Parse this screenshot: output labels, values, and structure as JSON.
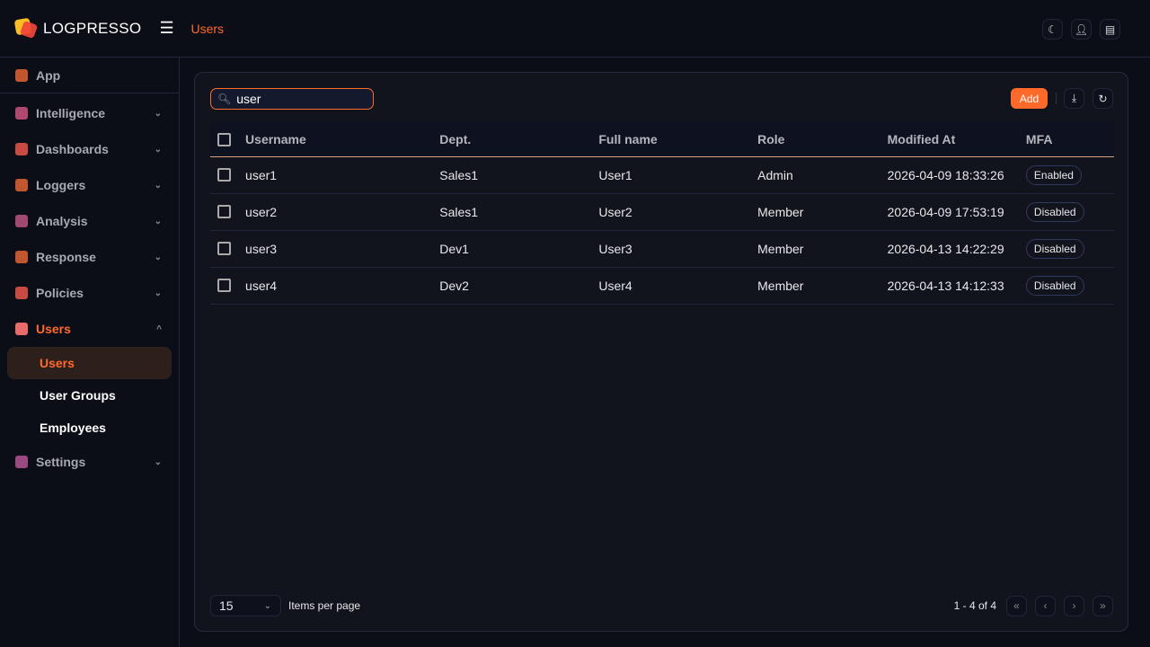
{
  "header": {
    "brand": "LOGPRESSO",
    "breadcrumb": "Users",
    "icons": [
      "moon-icon",
      "user-icon",
      "ticket-icon"
    ]
  },
  "sidebar": {
    "items": [
      {
        "label": "App",
        "color": "#c2562e",
        "chevron": ""
      },
      {
        "label": "Intelligence",
        "color": "#b04870",
        "chevron": "⌄"
      },
      {
        "label": "Dashboards",
        "color": "#c84a40",
        "chevron": "⌄"
      },
      {
        "label": "Loggers",
        "color": "#c2562e",
        "chevron": "⌄"
      },
      {
        "label": "Analysis",
        "color": "#a04a70",
        "chevron": "⌄"
      },
      {
        "label": "Response",
        "color": "#c2562e",
        "chevron": "⌄"
      },
      {
        "label": "Policies",
        "color": "#c84a40",
        "chevron": "⌄"
      },
      {
        "label": "Users",
        "color": "#e86a6a",
        "chevron": "^"
      },
      {
        "label": "Settings",
        "color": "#9a4a80",
        "chevron": "⌄"
      }
    ],
    "subitems": [
      "Users",
      "User Groups",
      "Employees"
    ]
  },
  "toolbar": {
    "search_value": "user",
    "add_label": "Add"
  },
  "table": {
    "columns": [
      "Username",
      "Dept.",
      "Full name",
      "Role",
      "Modified At",
      "MFA"
    ],
    "rows": [
      [
        "user1",
        "Sales1",
        "User1",
        "Admin",
        "2026-04-09 18:33:26",
        "Enabled"
      ],
      [
        "user2",
        "Sales1",
        "User2",
        "Member",
        "2026-04-09 17:53:19",
        "Disabled"
      ],
      [
        "user3",
        "Dev1",
        "User3",
        "Member",
        "2026-04-13 14:22:29",
        "Disabled"
      ],
      [
        "user4",
        "Dev2",
        "User4",
        "Member",
        "2026-04-13 14:12:33",
        "Disabled"
      ]
    ]
  },
  "footer": {
    "page_size": "15",
    "page_size_label": "Items per page",
    "range": "1 - 4 of 4"
  },
  "colors": {
    "accent": "#ff6a2b"
  }
}
